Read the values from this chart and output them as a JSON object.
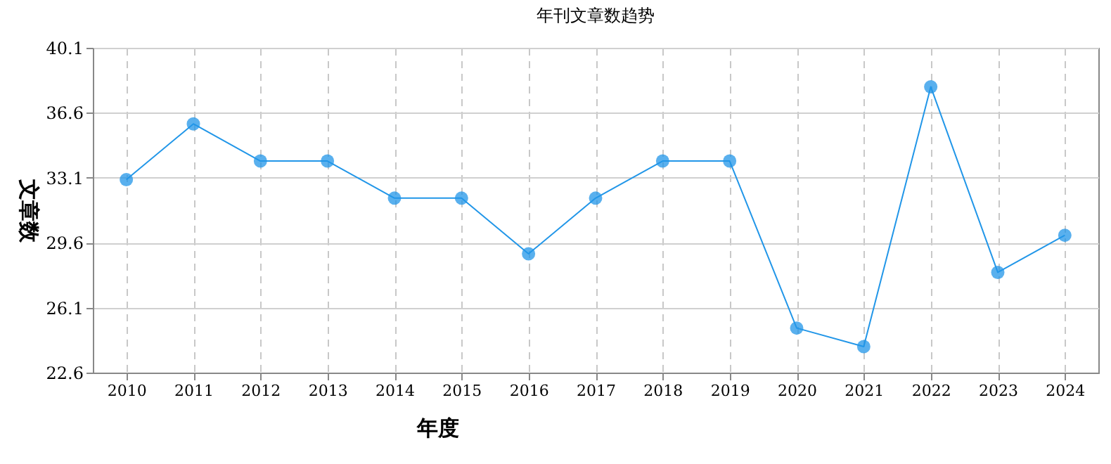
{
  "chart_data": {
    "type": "line",
    "title": "年刊文章数趋势",
    "xlabel": "年度",
    "ylabel": "文章数",
    "categories": [
      "2010",
      "2011",
      "2012",
      "2013",
      "2014",
      "2015",
      "2016",
      "2017",
      "2018",
      "2019",
      "2020",
      "2021",
      "2022",
      "2023",
      "2024"
    ],
    "series": [
      {
        "color": "#2196e8",
        "values": [
          33,
          36,
          34,
          34,
          32,
          32,
          29,
          32,
          34,
          34,
          25,
          24,
          38,
          28,
          30
        ]
      }
    ],
    "ylim": [
      22.6,
      40.1
    ],
    "yticks": [
      22.6,
      26.1,
      29.6,
      33.1,
      36.6,
      40.1
    ],
    "grid": true,
    "marker": "circle",
    "line_style": "solid"
  }
}
